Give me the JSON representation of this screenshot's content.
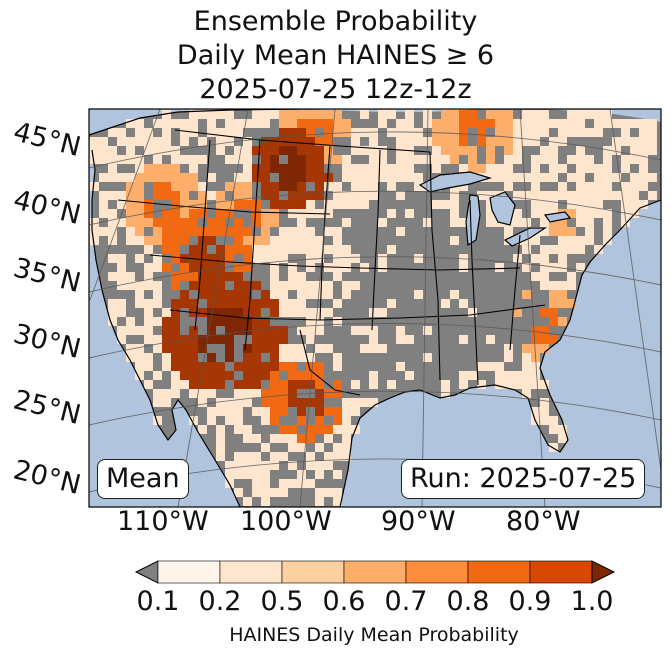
{
  "title": {
    "line1": "Ensemble Probability",
    "line2": "Daily Mean HAINES ≥ 6",
    "line3": "2025-07-25 12z-12z"
  },
  "map": {
    "lat_labels": [
      "45°N",
      "40°N",
      "35°N",
      "30°N",
      "25°N",
      "20°N"
    ],
    "lon_labels": [
      "110°W",
      "100°W",
      "90°W",
      "80°W"
    ],
    "stat_label": "Mean",
    "run_label": "Run: 2025-07-25",
    "colors": {
      "ocean": "#b0c4de",
      "land_low": "#808080",
      "border": "#000000",
      "grid": "#555555"
    }
  },
  "colorbar": {
    "ticks": [
      "0.1",
      "0.2",
      "0.5",
      "0.6",
      "0.7",
      "0.8",
      "0.9",
      "1.0"
    ],
    "label": "HAINES Daily Mean Probability",
    "colors": [
      "#fff5eb",
      "#fee6ce",
      "#fdd0a2",
      "#fdae6b",
      "#fd8d3c",
      "#f16913",
      "#d94801",
      "#a63603",
      "#7f2704"
    ],
    "under_color": "#808080"
  }
}
